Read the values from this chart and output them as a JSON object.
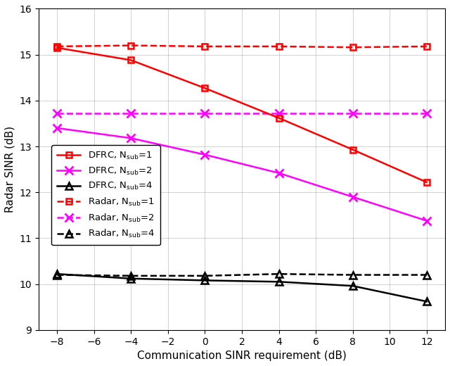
{
  "x": [
    -8,
    -4,
    0,
    4,
    8,
    12
  ],
  "dfrc_nsub1": [
    15.15,
    14.88,
    14.27,
    13.62,
    12.93,
    12.22
  ],
  "dfrc_nsub2": [
    13.4,
    13.18,
    12.82,
    12.42,
    11.9,
    11.38
  ],
  "dfrc_nsub4": [
    10.22,
    10.12,
    10.08,
    10.05,
    9.96,
    9.62
  ],
  "radar_nsub1": [
    15.18,
    15.2,
    15.18,
    15.18,
    15.16,
    15.18
  ],
  "radar_nsub2": [
    13.72,
    13.72,
    13.72,
    13.72,
    13.72,
    13.72
  ],
  "radar_nsub4": [
    10.2,
    10.18,
    10.18,
    10.22,
    10.2,
    10.2
  ],
  "xlabel": "Communication SINR requirement (dB)",
  "ylabel": "Radar SINR (dB)",
  "ylim": [
    9,
    16
  ],
  "xlim": [
    -9,
    13
  ],
  "xticks": [
    -8,
    -6,
    -4,
    -2,
    0,
    2,
    4,
    6,
    8,
    10,
    12
  ],
  "yticks": [
    9,
    10,
    11,
    12,
    13,
    14,
    15,
    16
  ],
  "color_red": "#FF0000",
  "color_magenta": "#FF00FF",
  "color_black": "#000000",
  "legend_labels": [
    "DFRC, N$_\\mathregular{sub}$=1",
    "DFRC, N$_\\mathregular{sub}$=2",
    "DFRC, N$_\\mathregular{sub}$=4",
    "Radar, N$_\\mathregular{sub}$=1",
    "Radar, N$_\\mathregular{sub}$=2",
    "Radar, N$_\\mathregular{sub}$=4"
  ]
}
